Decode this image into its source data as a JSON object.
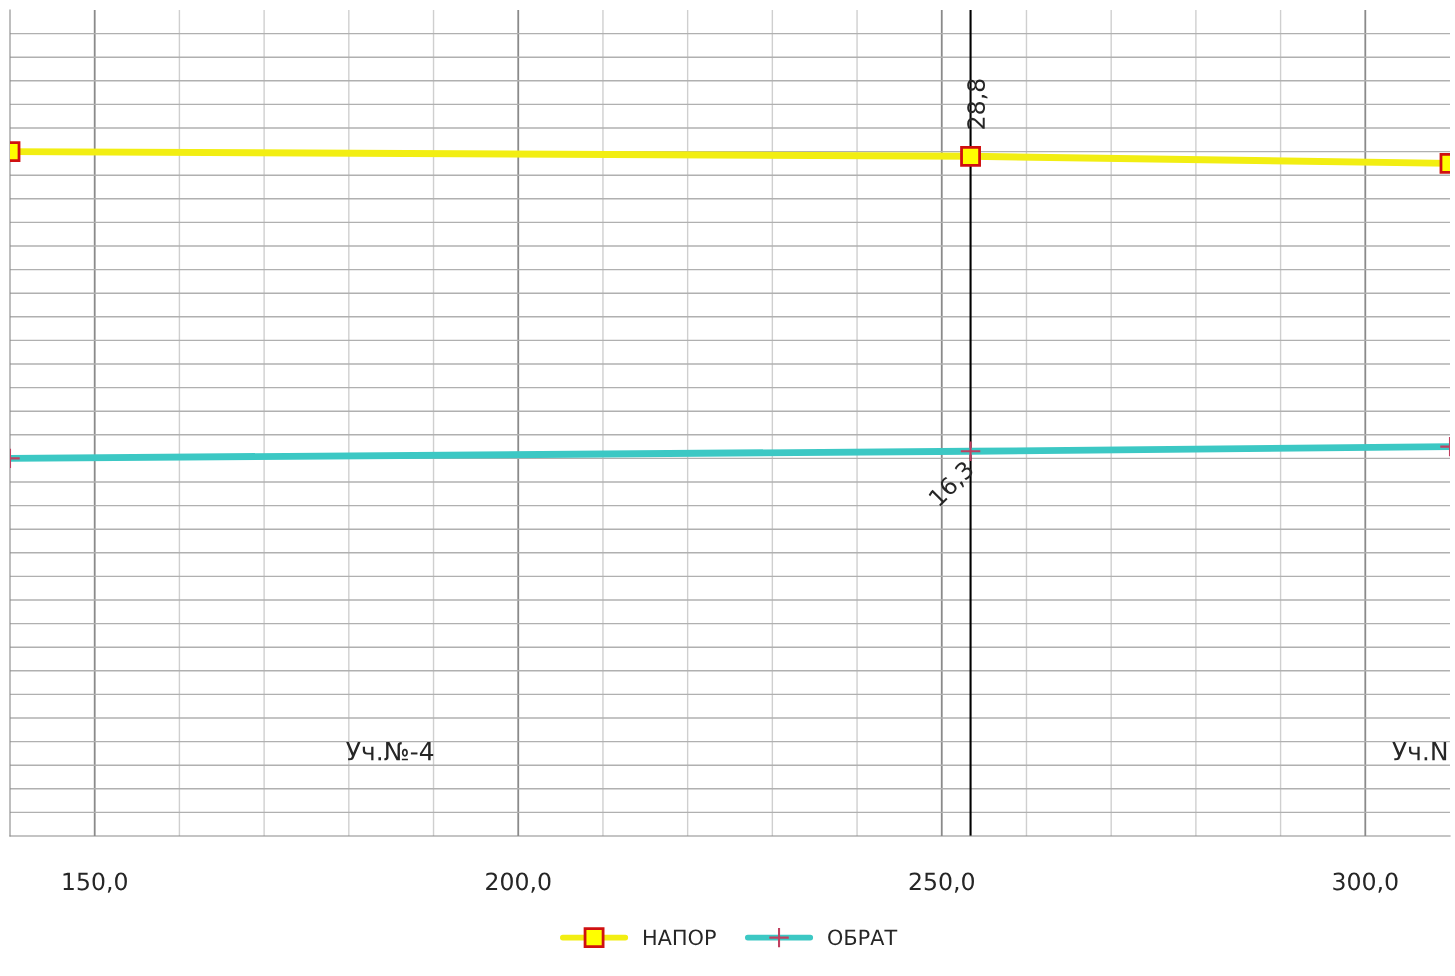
{
  "chart_data": {
    "type": "line",
    "series": [
      {
        "name": "НАПОР",
        "color": "#f2ee12",
        "marker": "square",
        "x": [
          140,
          253.4,
          310
        ],
        "values": [
          29.0,
          28.8,
          28.5
        ],
        "value_labels": [
          null,
          "28,8",
          null
        ]
      },
      {
        "name": "ОБРАТ",
        "color": "#3cc8c4",
        "marker": "cross",
        "x": [
          140,
          253.4,
          310
        ],
        "values": [
          16.0,
          16.3,
          16.5
        ],
        "value_labels": [
          null,
          "16,3",
          null
        ]
      }
    ],
    "xlim": [
      140,
      310
    ],
    "xticks": [
      {
        "value": 150,
        "label": "150,0"
      },
      {
        "value": 160,
        "label": null
      },
      {
        "value": 170,
        "label": null
      },
      {
        "value": 180,
        "label": null
      },
      {
        "value": 190,
        "label": null
      },
      {
        "value": 200,
        "label": "200,0"
      },
      {
        "value": 210,
        "label": null
      },
      {
        "value": 220,
        "label": null
      },
      {
        "value": 230,
        "label": null
      },
      {
        "value": 240,
        "label": null
      },
      {
        "value": 250,
        "label": "250,0"
      },
      {
        "value": 260,
        "label": null
      },
      {
        "value": 270,
        "label": null
      },
      {
        "value": 280,
        "label": null
      },
      {
        "value": 290,
        "label": null
      },
      {
        "value": 300,
        "label": "300,0"
      }
    ],
    "ylim": [
      0,
      35
    ],
    "yticks": [
      {
        "value": 1,
        "label": null
      },
      {
        "value": 2,
        "label": null
      },
      {
        "value": 3,
        "label": null
      },
      {
        "value": 4,
        "label": null
      },
      {
        "value": 5,
        "label": null
      },
      {
        "value": 6,
        "label": null
      },
      {
        "value": 7,
        "label": null
      },
      {
        "value": 8,
        "label": null
      },
      {
        "value": 9,
        "label": null
      },
      {
        "value": 10,
        "label": null
      },
      {
        "value": 11,
        "label": null
      },
      {
        "value": 12,
        "label": null
      },
      {
        "value": 13,
        "label": null
      },
      {
        "value": 14,
        "label": null
      },
      {
        "value": 15,
        "label": null
      },
      {
        "value": 16,
        "label": null
      },
      {
        "value": 17,
        "label": null
      },
      {
        "value": 18,
        "label": null
      },
      {
        "value": 19,
        "label": null
      },
      {
        "value": 20,
        "label": null
      },
      {
        "value": 21,
        "label": null
      },
      {
        "value": 22,
        "label": null
      },
      {
        "value": 23,
        "label": null
      },
      {
        "value": 24,
        "label": null
      },
      {
        "value": 25,
        "label": null
      },
      {
        "value": 26,
        "label": null
      },
      {
        "value": 27,
        "label": null
      },
      {
        "value": 28,
        "label": null
      },
      {
        "value": 29,
        "label": null
      },
      {
        "value": 30,
        "label": null
      },
      {
        "value": 31,
        "label": null
      },
      {
        "value": 32,
        "label": null
      },
      {
        "value": 33,
        "label": null
      },
      {
        "value": 34,
        "label": null
      }
    ],
    "tick_labels": "x",
    "grid": true,
    "legend": "bottom",
    "ref_lines": [
      {
        "axis": "x",
        "value": 253.4,
        "color": "#000000"
      }
    ],
    "annotations": [
      "Уч.№-4",
      "Уч.N"
    ]
  }
}
